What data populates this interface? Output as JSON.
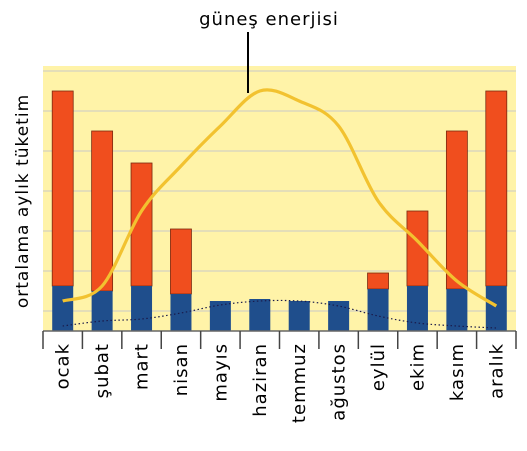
{
  "chart_data": {
    "type": "bar",
    "title": "",
    "ylabel": "ortalama aylık tüketim",
    "xlabel": "",
    "categories": [
      "ocak",
      "şubat",
      "mart",
      "nisan",
      "mayıs",
      "haziran",
      "temmuz",
      "ağustos",
      "eylül",
      "ekim",
      "kasım",
      "aralık"
    ],
    "series": [
      {
        "values": [
          45,
          40,
          45,
          37,
          30,
          32,
          30,
          30,
          42,
          45,
          42,
          45
        ]
      },
      {
        "values": [
          240,
          200,
          168,
          102,
          30,
          32,
          30,
          30,
          58,
          120,
          200,
          240
        ]
      }
    ],
    "lines": [
      {
        "name": "güneş enerjisi",
        "values": [
          30,
          45,
          120,
          165,
          205,
          240,
          230,
          205,
          130,
          90,
          50,
          25
        ]
      },
      {
        "values": [
          5,
          10,
          12,
          18,
          26,
          30,
          30,
          25,
          15,
          8,
          5,
          3
        ]
      }
    ],
    "annotation": "güneş enerjisi",
    "ylim": [
      0,
      265
    ],
    "grid": true,
    "colors": {
      "plot_background": "#fff3a8",
      "bar_base": "#1f4e8c",
      "bar_top": "#f04e1e",
      "solar_line": "#f2c230",
      "low_line": "#1a1a4a",
      "grid": "#c8c8c8"
    }
  }
}
